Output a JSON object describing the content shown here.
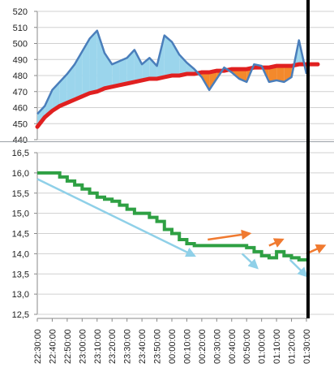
{
  "chart_data": [
    {
      "type": "area",
      "ylim": [
        440,
        520
      ],
      "yticks": [
        440,
        450,
        460,
        470,
        480,
        490,
        500,
        510,
        520
      ],
      "grid": true,
      "series": [
        {
          "role": "price",
          "color": "#4a7ebb",
          "x": [
            "22:30:00",
            "22:35:00",
            "22:40:00",
            "22:45:00",
            "22:50:00",
            "22:55:00",
            "23:00:00",
            "23:05:00",
            "23:10:00",
            "23:15:00",
            "23:20:00",
            "23:25:00",
            "23:30:00",
            "23:35:00",
            "23:40:00",
            "23:45:00",
            "23:50:00",
            "23:55:00",
            "00:00:00",
            "00:05:00",
            "00:10:00",
            "00:15:00",
            "00:20:00",
            "00:25:00",
            "00:30:00",
            "00:35:00",
            "00:40:00",
            "00:45:00",
            "00:50:00",
            "00:55:00",
            "01:00:00",
            "01:05:00",
            "01:10:00",
            "01:15:00",
            "01:20:00",
            "01:25:00",
            "01:30:00"
          ],
          "values": [
            456,
            461,
            471,
            476,
            481,
            487,
            495,
            503,
            508,
            494,
            487,
            489,
            491,
            496,
            487,
            491,
            486,
            505,
            501,
            493,
            488,
            484,
            479,
            471,
            478,
            485,
            482,
            478,
            476,
            487,
            486,
            476,
            477,
            476,
            479,
            502,
            481
          ]
        },
        {
          "role": "trend",
          "color": "#e02020",
          "x": [
            "22:30:00",
            "22:35:00",
            "22:40:00",
            "22:45:00",
            "22:50:00",
            "22:55:00",
            "23:00:00",
            "23:05:00",
            "23:10:00",
            "23:15:00",
            "23:20:00",
            "23:25:00",
            "23:30:00",
            "23:35:00",
            "23:40:00",
            "23:45:00",
            "23:50:00",
            "23:55:00",
            "00:00:00",
            "00:05:00",
            "00:10:00",
            "00:15:00",
            "00:20:00",
            "00:25:00",
            "00:30:00",
            "00:35:00",
            "00:40:00",
            "00:45:00",
            "00:50:00",
            "00:55:00",
            "01:00:00",
            "01:05:00",
            "01:10:00",
            "01:15:00",
            "01:20:00",
            "01:25:00",
            "01:30:00"
          ],
          "values": [
            448,
            454,
            458,
            461,
            463,
            465,
            467,
            469,
            470,
            472,
            473,
            474,
            475,
            476,
            477,
            478,
            478,
            479,
            480,
            480,
            481,
            481,
            482,
            482,
            483,
            483,
            484,
            484,
            484,
            485,
            485,
            485,
            486,
            486,
            486,
            487,
            487
          ]
        }
      ]
    },
    {
      "type": "line",
      "ylim": [
        12.5,
        16.5
      ],
      "yticks": [
        "12,5",
        "13,0",
        "13,5",
        "14,0",
        "14,5",
        "15,0",
        "15,5",
        "16,0",
        "16,5"
      ],
      "xticks": [
        "22:30:00",
        "22:40:00",
        "22:50:00",
        "23:00:00",
        "23:10:00",
        "23:20:00",
        "23:30:00",
        "23:40:00",
        "23:50:00",
        "00:00:00",
        "00:10:00",
        "00:20:00",
        "00:30:00",
        "00:40:00",
        "00:50:00",
        "01:00:00",
        "01:10:00",
        "01:20:00",
        "01:30:00"
      ],
      "grid": true,
      "series": [
        {
          "role": "level",
          "color": "#2ea043",
          "x": [
            "22:30:00",
            "22:35:00",
            "22:40:00",
            "22:45:00",
            "22:50:00",
            "22:55:00",
            "23:00:00",
            "23:05:00",
            "23:10:00",
            "23:15:00",
            "23:20:00",
            "23:25:00",
            "23:30:00",
            "23:35:00",
            "23:40:00",
            "23:45:00",
            "23:50:00",
            "23:55:00",
            "00:00:00",
            "00:05:00",
            "00:10:00",
            "00:15:00",
            "00:20:00",
            "00:25:00",
            "00:30:00",
            "00:35:00",
            "00:40:00",
            "00:45:00",
            "00:50:00",
            "00:55:00",
            "01:00:00",
            "01:05:00",
            "01:10:00",
            "01:15:00",
            "01:20:00",
            "01:25:00",
            "01:30:00"
          ],
          "values": [
            16.0,
            16.0,
            16.0,
            15.9,
            15.8,
            15.7,
            15.6,
            15.5,
            15.4,
            15.35,
            15.3,
            15.2,
            15.1,
            15.0,
            15.0,
            14.9,
            14.8,
            14.6,
            14.5,
            14.35,
            14.25,
            14.2,
            14.2,
            14.2,
            14.2,
            14.2,
            14.2,
            14.2,
            14.15,
            14.05,
            13.95,
            13.9,
            14.05,
            13.95,
            13.9,
            13.85,
            13.85
          ]
        }
      ],
      "annotations": [
        {
          "type": "arrow",
          "color": "#8fd0e8",
          "from": [
            "22:30:00",
            15.85
          ],
          "to": [
            "00:15:00",
            13.95
          ]
        },
        {
          "type": "arrow",
          "color": "#8fd0e8",
          "from": [
            "00:47:00",
            14.0
          ],
          "to": [
            "00:57:00",
            13.65
          ]
        },
        {
          "type": "arrow",
          "color": "#8fd0e8",
          "from": [
            "01:19:00",
            13.85
          ],
          "to": [
            "01:30:00",
            13.45
          ]
        },
        {
          "type": "arrow",
          "color": "#f07a30",
          "from": [
            "00:24:00",
            14.35
          ],
          "to": [
            "00:52:00",
            14.5
          ]
        },
        {
          "type": "arrow",
          "color": "#f07a30",
          "from": [
            "01:05:00",
            14.2
          ],
          "to": [
            "01:14:00",
            14.35
          ]
        },
        {
          "type": "arrow",
          "color": "#f07a30",
          "from": [
            "01:30:00",
            14.0
          ],
          "to": [
            "01:42:00",
            14.2
          ]
        }
      ]
    }
  ]
}
